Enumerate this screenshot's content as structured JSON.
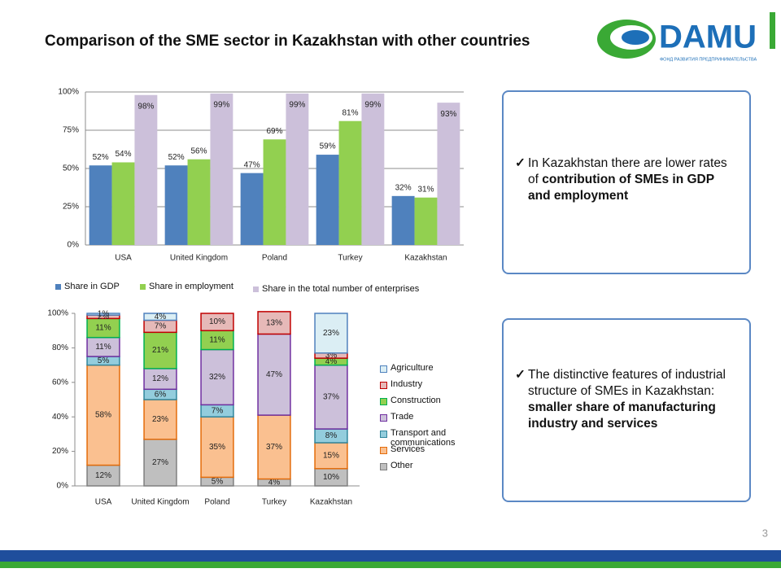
{
  "title": "Comparison of the SME sector in Kazakhstan with other countries",
  "logo": {
    "text": "DAMU",
    "subtitle": "ФОНД РАЗВИТИЯ ПРЕДПРИНИМАТЕЛЬСТВА"
  },
  "notes": [
    [
      {
        "text": "In Kazakhstan there are lower rates of "
      },
      {
        "text": "contribution of SMEs in GDP and employment",
        "bold": true
      }
    ],
    [
      {
        "text": "The distinctive features of industrial structure of SMEs in Kazakhstan: "
      },
      {
        "text": "smaller share of manufacturing industry and services",
        "bold": true
      }
    ]
  ],
  "page_number": "3",
  "chart_data": [
    {
      "type": "bar",
      "categories": [
        "USA",
        "United Kingdom",
        "Poland",
        "Turkey",
        "Kazakhstan"
      ],
      "series": [
        {
          "name": "Share in GDP",
          "color": "#4f81bd",
          "values": [
            52,
            52,
            47,
            59,
            32
          ],
          "value_labels": [
            "52%",
            "52%",
            "47%",
            "59%",
            "32%"
          ]
        },
        {
          "name": "Share in employment",
          "color": "#92d050",
          "values": [
            54,
            56,
            69,
            81,
            31
          ],
          "value_labels": [
            "54%",
            "56%",
            "69%",
            "81%",
            "31%"
          ]
        },
        {
          "name": "Share in the total number of enterprises",
          "color": "#ccc0da",
          "values": [
            98,
            99,
            99,
            99,
            93
          ],
          "value_labels": [
            "98%",
            "99%",
            "99%",
            "99%",
            "93%"
          ]
        }
      ],
      "ylim": [
        0,
        100
      ],
      "yticks": [
        {
          "value": 0,
          "label": "0%"
        },
        {
          "value": 25,
          "label": "25%"
        },
        {
          "value": 50,
          "label": "50%"
        },
        {
          "value": 75,
          "label": "75%"
        },
        {
          "value": 100,
          "label": "100%"
        }
      ],
      "grid": true,
      "legend": "bottom"
    },
    {
      "type": "stacked_bar",
      "categories": [
        "USA",
        "United Kingdom",
        "Poland",
        "Turkey",
        "Kazakhstan"
      ],
      "series": [
        {
          "name": "Other",
          "color": "#bfbfbf",
          "edge": "#7f7f7f",
          "values": [
            12,
            27,
            5,
            4,
            10
          ],
          "value_labels": [
            "12%",
            "27%",
            "5%",
            "4%",
            "10%"
          ]
        },
        {
          "name": "Services",
          "color": "#fac090",
          "edge": "#e46c0a",
          "values": [
            58,
            23,
            35,
            37,
            15
          ],
          "value_labels": [
            "58%",
            "23%",
            "35%",
            "37%",
            "15%"
          ]
        },
        {
          "name": "Transport and communications",
          "color": "#93cddd",
          "edge": "#31859c",
          "values": [
            5,
            6,
            7,
            null,
            8
          ],
          "value_labels": [
            "5%",
            "6%",
            "7%",
            null,
            "8%"
          ]
        },
        {
          "name": "Trade",
          "color": "#ccc0da",
          "edge": "#7030a0",
          "values": [
            11,
            12,
            32,
            47,
            37
          ],
          "value_labels": [
            "11%",
            "12%",
            "32%",
            "47%",
            "37%"
          ]
        },
        {
          "name": "Construction",
          "color": "#92d050",
          "edge": "#00b050",
          "values": [
            11,
            21,
            11,
            null,
            4
          ],
          "value_labels": [
            "11%",
            "21%",
            "11%",
            null,
            "4%"
          ]
        },
        {
          "name": "Industry",
          "color": "#e6b9b8",
          "edge": "#c00000",
          "values": [
            2,
            7,
            10,
            13,
            3
          ],
          "value_labels": [
            "2%",
            "7%",
            "10%",
            "13%",
            "3%"
          ]
        },
        {
          "name": "Agriculture",
          "color": "#dbeef4",
          "edge": "#4f81bd",
          "values": [
            1,
            4,
            null,
            null,
            23
          ],
          "value_labels": [
            "1%",
            "4%",
            null,
            null,
            "23%"
          ]
        }
      ],
      "ylim": [
        0,
        100
      ],
      "yticks": [
        {
          "value": 0,
          "label": "0%"
        },
        {
          "value": 20,
          "label": "20%"
        },
        {
          "value": 40,
          "label": "40%"
        },
        {
          "value": 60,
          "label": "60%"
        },
        {
          "value": 80,
          "label": "80%"
        },
        {
          "value": 100,
          "label": "100%"
        }
      ],
      "grid": false,
      "legend": "right"
    }
  ]
}
